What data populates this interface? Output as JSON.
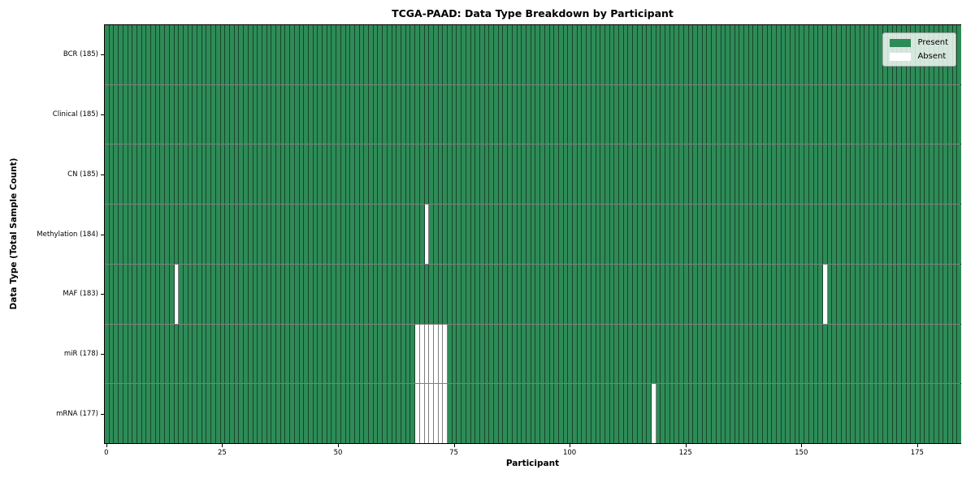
{
  "title": "TCGA-PAAD: Data Type Breakdown by Participant",
  "axes": {
    "xlabel": "Participant",
    "ylabel": "Data Type (Total Sample Count)"
  },
  "legend": {
    "position": "upper-right",
    "items": [
      {
        "label": "Present",
        "color": "#2e8b57"
      },
      {
        "label": "Absent",
        "color": "#ffffff"
      }
    ]
  },
  "colors": {
    "present": "#2e8b57",
    "absent": "#ffffff",
    "cell_border": "rgba(0,0,0,0.5)",
    "spine": "#000000"
  },
  "chart_data": {
    "type": "heatmap",
    "title": "TCGA-PAAD: Data Type Breakdown by Participant",
    "xlabel": "Participant",
    "ylabel": "Data Type (Total Sample Count)",
    "x_ticks": [
      0,
      25,
      50,
      75,
      100,
      125,
      150,
      175
    ],
    "xlim": [
      -0.5,
      184.5
    ],
    "n_participants": 185,
    "grid": true,
    "legend_entries": [
      "Present",
      "Absent"
    ],
    "rows": [
      {
        "label": "BCR (185)",
        "data_type": "BCR",
        "total": 185,
        "absent_participants": []
      },
      {
        "label": "Clinical (185)",
        "data_type": "Clinical",
        "total": 185,
        "absent_participants": []
      },
      {
        "label": "CN (185)",
        "data_type": "CN",
        "total": 185,
        "absent_participants": []
      },
      {
        "label": "Methylation (184)",
        "data_type": "Methylation",
        "total": 184,
        "absent_participants": [
          69
        ]
      },
      {
        "label": "MAF (183)",
        "data_type": "MAF",
        "total": 183,
        "absent_participants": [
          15,
          155
        ]
      },
      {
        "label": "miR (178)",
        "data_type": "miR",
        "total": 178,
        "absent_participants": [
          67,
          68,
          69,
          70,
          71,
          72,
          73
        ]
      },
      {
        "label": "mRNA (177)",
        "data_type": "mRNA",
        "total": 177,
        "absent_participants": [
          67,
          68,
          69,
          70,
          71,
          72,
          73,
          118
        ]
      }
    ]
  }
}
